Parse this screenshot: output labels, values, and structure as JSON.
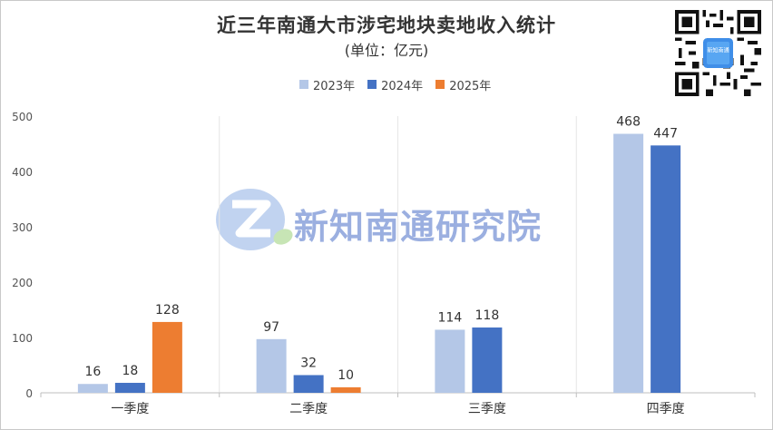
{
  "chart_data": {
    "type": "bar",
    "title": "近三年南通大市涉宅地块卖地收入统计",
    "subtitle": "(单位：亿元)",
    "categories": [
      "一季度",
      "二季度",
      "三季度",
      "四季度"
    ],
    "series": [
      {
        "name": "2023年",
        "color": "#b4c7e7",
        "values": [
          16,
          97,
          114,
          468
        ]
      },
      {
        "name": "2024年",
        "color": "#4472c4",
        "values": [
          18,
          32,
          118,
          447
        ]
      },
      {
        "name": "2025年",
        "color": "#ed7d31",
        "values": [
          128,
          10,
          null,
          null
        ]
      }
    ],
    "ylim": [
      0,
      500
    ],
    "yticks": [
      0,
      100,
      200,
      300,
      400,
      500
    ],
    "grid": "vertical category separators",
    "legend_position": "top-center"
  },
  "watermark": {
    "text": "新知南通研究院"
  },
  "qr": {
    "label": "新知南通"
  }
}
